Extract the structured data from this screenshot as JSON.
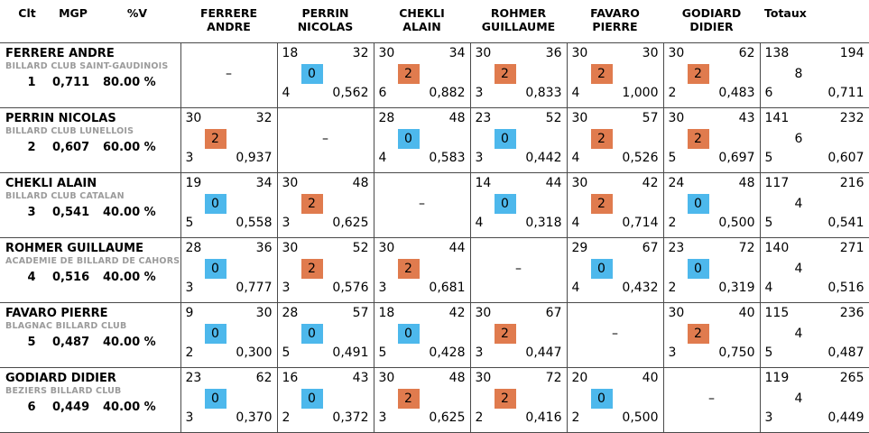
{
  "columns": {
    "clt": "Clt",
    "mgp": "MGP",
    "pv": "%V",
    "totaux": "Totaux"
  },
  "dash": "–",
  "colors": {
    "win_badge": "#E07B4E",
    "loss_badge": "#4DB8EC",
    "club_text": "#9B9B9B",
    "grid_line": "#4A4A4A"
  },
  "opponents": [
    {
      "l1": "FERRERE",
      "l2": "ANDRE"
    },
    {
      "l1": "PERRIN",
      "l2": "NICOLAS"
    },
    {
      "l1": "CHEKLI",
      "l2": "ALAIN"
    },
    {
      "l1": "ROHMER",
      "l2": "GUILLAUME"
    },
    {
      "l1": "FAVARO",
      "l2": "PIERRE"
    },
    {
      "l1": "GODIARD",
      "l2": "DIDIER"
    }
  ],
  "players": [
    {
      "name": "FERRERE ANDRE",
      "club": "BILLARD CLUB SAINT-GAUDINOIS",
      "clt": "1",
      "mgp": "0,711",
      "pv": "80.00 %",
      "matches": [
        null,
        {
          "pts": "18",
          "rep": "32",
          "mp": "0",
          "ser": "4",
          "avg": "0,562"
        },
        {
          "pts": "30",
          "rep": "34",
          "mp": "2",
          "ser": "6",
          "avg": "0,882"
        },
        {
          "pts": "30",
          "rep": "36",
          "mp": "2",
          "ser": "3",
          "avg": "0,833"
        },
        {
          "pts": "30",
          "rep": "30",
          "mp": "2",
          "ser": "4",
          "avg": "1,000"
        },
        {
          "pts": "30",
          "rep": "62",
          "mp": "2",
          "ser": "2",
          "avg": "0,483"
        }
      ],
      "totals": {
        "pts": "138",
        "rep": "194",
        "mp": "8",
        "ser": "6",
        "avg": "0,711"
      }
    },
    {
      "name": "PERRIN NICOLAS",
      "club": "BILLARD CLUB LUNELLOIS",
      "clt": "2",
      "mgp": "0,607",
      "pv": "60.00 %",
      "matches": [
        {
          "pts": "30",
          "rep": "32",
          "mp": "2",
          "ser": "3",
          "avg": "0,937"
        },
        null,
        {
          "pts": "28",
          "rep": "48",
          "mp": "0",
          "ser": "4",
          "avg": "0,583"
        },
        {
          "pts": "23",
          "rep": "52",
          "mp": "0",
          "ser": "3",
          "avg": "0,442"
        },
        {
          "pts": "30",
          "rep": "57",
          "mp": "2",
          "ser": "4",
          "avg": "0,526"
        },
        {
          "pts": "30",
          "rep": "43",
          "mp": "2",
          "ser": "5",
          "avg": "0,697"
        }
      ],
      "totals": {
        "pts": "141",
        "rep": "232",
        "mp": "6",
        "ser": "5",
        "avg": "0,607"
      }
    },
    {
      "name": "CHEKLI ALAIN",
      "club": "BILLARD CLUB CATALAN",
      "clt": "3",
      "mgp": "0,541",
      "pv": "40.00 %",
      "matches": [
        {
          "pts": "19",
          "rep": "34",
          "mp": "0",
          "ser": "5",
          "avg": "0,558"
        },
        {
          "pts": "30",
          "rep": "48",
          "mp": "2",
          "ser": "3",
          "avg": "0,625"
        },
        null,
        {
          "pts": "14",
          "rep": "44",
          "mp": "0",
          "ser": "4",
          "avg": "0,318"
        },
        {
          "pts": "30",
          "rep": "42",
          "mp": "2",
          "ser": "4",
          "avg": "0,714"
        },
        {
          "pts": "24",
          "rep": "48",
          "mp": "0",
          "ser": "2",
          "avg": "0,500"
        }
      ],
      "totals": {
        "pts": "117",
        "rep": "216",
        "mp": "4",
        "ser": "5",
        "avg": "0,541"
      }
    },
    {
      "name": "ROHMER GUILLAUME",
      "club": "ACADEMIE DE BILLARD DE CAHORS",
      "clt": "4",
      "mgp": "0,516",
      "pv": "40.00 %",
      "matches": [
        {
          "pts": "28",
          "rep": "36",
          "mp": "0",
          "ser": "3",
          "avg": "0,777"
        },
        {
          "pts": "30",
          "rep": "52",
          "mp": "2",
          "ser": "3",
          "avg": "0,576"
        },
        {
          "pts": "30",
          "rep": "44",
          "mp": "2",
          "ser": "3",
          "avg": "0,681"
        },
        null,
        {
          "pts": "29",
          "rep": "67",
          "mp": "0",
          "ser": "4",
          "avg": "0,432"
        },
        {
          "pts": "23",
          "rep": "72",
          "mp": "0",
          "ser": "2",
          "avg": "0,319"
        }
      ],
      "totals": {
        "pts": "140",
        "rep": "271",
        "mp": "4",
        "ser": "4",
        "avg": "0,516"
      }
    },
    {
      "name": "FAVARO PIERRE",
      "club": "BLAGNAC BILLARD CLUB",
      "clt": "5",
      "mgp": "0,487",
      "pv": "40.00 %",
      "matches": [
        {
          "pts": "9",
          "rep": "30",
          "mp": "0",
          "ser": "2",
          "avg": "0,300"
        },
        {
          "pts": "28",
          "rep": "57",
          "mp": "0",
          "ser": "5",
          "avg": "0,491"
        },
        {
          "pts": "18",
          "rep": "42",
          "mp": "0",
          "ser": "5",
          "avg": "0,428"
        },
        {
          "pts": "30",
          "rep": "67",
          "mp": "2",
          "ser": "3",
          "avg": "0,447"
        },
        null,
        {
          "pts": "30",
          "rep": "40",
          "mp": "2",
          "ser": "3",
          "avg": "0,750"
        }
      ],
      "totals": {
        "pts": "115",
        "rep": "236",
        "mp": "4",
        "ser": "5",
        "avg": "0,487"
      }
    },
    {
      "name": "GODIARD DIDIER",
      "club": "BEZIERS BILLARD CLUB",
      "clt": "6",
      "mgp": "0,449",
      "pv": "40.00 %",
      "matches": [
        {
          "pts": "23",
          "rep": "62",
          "mp": "0",
          "ser": "3",
          "avg": "0,370"
        },
        {
          "pts": "16",
          "rep": "43",
          "mp": "0",
          "ser": "2",
          "avg": "0,372"
        },
        {
          "pts": "30",
          "rep": "48",
          "mp": "2",
          "ser": "3",
          "avg": "0,625"
        },
        {
          "pts": "30",
          "rep": "72",
          "mp": "2",
          "ser": "2",
          "avg": "0,416"
        },
        {
          "pts": "20",
          "rep": "40",
          "mp": "0",
          "ser": "2",
          "avg": "0,500"
        },
        null
      ],
      "totals": {
        "pts": "119",
        "rep": "265",
        "mp": "4",
        "ser": "3",
        "avg": "0,449"
      }
    }
  ]
}
